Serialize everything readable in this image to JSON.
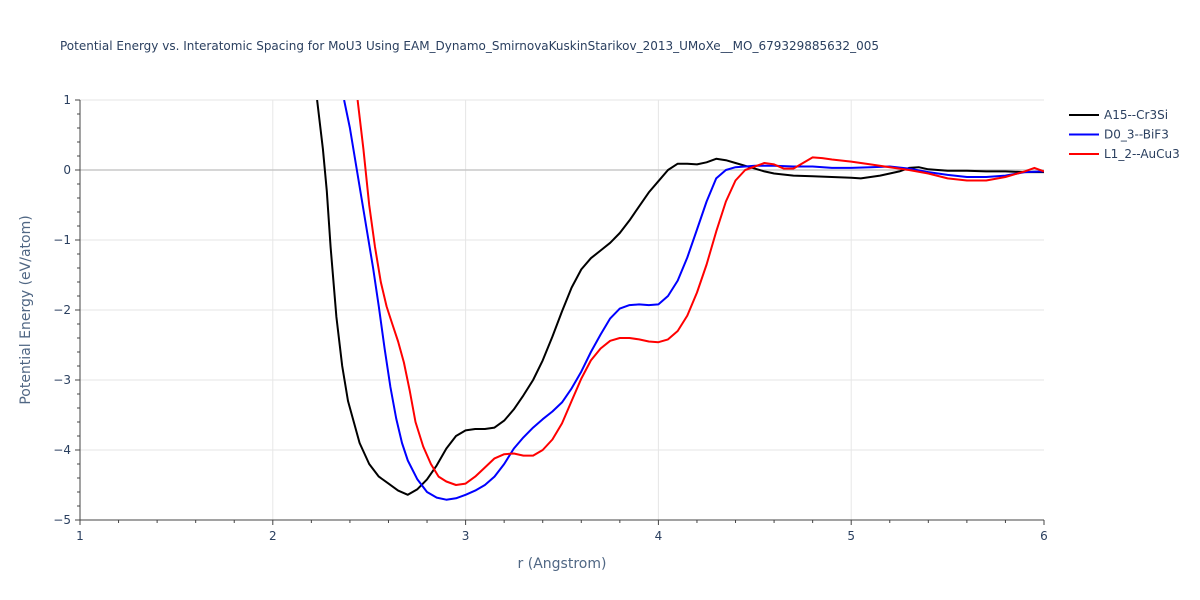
{
  "chart_data": {
    "type": "line",
    "title": "Potential Energy vs. Interatomic Spacing for MoU3 Using EAM_Dynamo_SmirnovaKuskinStarikov_2013_UMoXe__MO_679329885632_005",
    "xlabel": "r (Angstrom)",
    "ylabel": "Potential Energy (eV/atom)",
    "xlim": [
      1,
      6
    ],
    "ylim": [
      -5,
      1
    ],
    "x_ticks": [
      1,
      2,
      3,
      4,
      5,
      6
    ],
    "y_ticks": [
      1,
      0,
      -1,
      -2,
      -3,
      -4,
      -5
    ],
    "x_tick_labels": [
      "1",
      "2",
      "3",
      "4",
      "5",
      "6"
    ],
    "y_tick_labels": [
      "1",
      "0",
      "−1",
      "−2",
      "−3",
      "−4",
      "−5"
    ],
    "grid": true,
    "legend_position": "top-right",
    "series": [
      {
        "name": "A15--Cr3Si",
        "color": "#000000",
        "points": [
          [
            2.23,
            1.0
          ],
          [
            2.26,
            0.3
          ],
          [
            2.28,
            -0.3
          ],
          [
            2.3,
            -1.1
          ],
          [
            2.33,
            -2.1
          ],
          [
            2.36,
            -2.8
          ],
          [
            2.39,
            -3.3
          ],
          [
            2.42,
            -3.6
          ],
          [
            2.45,
            -3.9
          ],
          [
            2.5,
            -4.2
          ],
          [
            2.55,
            -4.38
          ],
          [
            2.6,
            -4.48
          ],
          [
            2.65,
            -4.58
          ],
          [
            2.7,
            -4.64
          ],
          [
            2.75,
            -4.56
          ],
          [
            2.8,
            -4.42
          ],
          [
            2.85,
            -4.22
          ],
          [
            2.9,
            -3.98
          ],
          [
            2.95,
            -3.8
          ],
          [
            3.0,
            -3.72
          ],
          [
            3.05,
            -3.7
          ],
          [
            3.1,
            -3.7
          ],
          [
            3.15,
            -3.68
          ],
          [
            3.2,
            -3.58
          ],
          [
            3.25,
            -3.42
          ],
          [
            3.3,
            -3.22
          ],
          [
            3.35,
            -3.0
          ],
          [
            3.4,
            -2.72
          ],
          [
            3.45,
            -2.38
          ],
          [
            3.5,
            -2.02
          ],
          [
            3.55,
            -1.68
          ],
          [
            3.6,
            -1.42
          ],
          [
            3.65,
            -1.26
          ],
          [
            3.7,
            -1.15
          ],
          [
            3.75,
            -1.04
          ],
          [
            3.8,
            -0.9
          ],
          [
            3.85,
            -0.72
          ],
          [
            3.9,
            -0.52
          ],
          [
            3.95,
            -0.32
          ],
          [
            4.0,
            -0.16
          ],
          [
            4.05,
            0.0
          ],
          [
            4.1,
            0.09
          ],
          [
            4.15,
            0.09
          ],
          [
            4.2,
            0.08
          ],
          [
            4.25,
            0.11
          ],
          [
            4.3,
            0.16
          ],
          [
            4.35,
            0.14
          ],
          [
            4.4,
            0.1
          ],
          [
            4.45,
            0.06
          ],
          [
            4.5,
            0.02
          ],
          [
            4.55,
            -0.02
          ],
          [
            4.6,
            -0.05
          ],
          [
            4.7,
            -0.08
          ],
          [
            4.8,
            -0.09
          ],
          [
            4.9,
            -0.1
          ],
          [
            5.0,
            -0.11
          ],
          [
            5.05,
            -0.12
          ],
          [
            5.1,
            -0.1
          ],
          [
            5.15,
            -0.08
          ],
          [
            5.2,
            -0.05
          ],
          [
            5.25,
            -0.02
          ],
          [
            5.3,
            0.03
          ],
          [
            5.35,
            0.04
          ],
          [
            5.4,
            0.01
          ],
          [
            5.5,
            -0.01
          ],
          [
            5.6,
            -0.01
          ],
          [
            5.7,
            -0.02
          ],
          [
            5.8,
            -0.02
          ],
          [
            5.9,
            -0.03
          ],
          [
            6.0,
            -0.03
          ]
        ]
      },
      {
        "name": "D0_3--BiF3",
        "color": "#0000ff",
        "points": [
          [
            2.37,
            1.0
          ],
          [
            2.4,
            0.6
          ],
          [
            2.43,
            0.1
          ],
          [
            2.46,
            -0.4
          ],
          [
            2.49,
            -0.9
          ],
          [
            2.52,
            -1.4
          ],
          [
            2.55,
            -1.95
          ],
          [
            2.58,
            -2.55
          ],
          [
            2.61,
            -3.1
          ],
          [
            2.64,
            -3.55
          ],
          [
            2.67,
            -3.9
          ],
          [
            2.7,
            -4.15
          ],
          [
            2.75,
            -4.42
          ],
          [
            2.8,
            -4.6
          ],
          [
            2.85,
            -4.68
          ],
          [
            2.9,
            -4.71
          ],
          [
            2.95,
            -4.69
          ],
          [
            3.0,
            -4.64
          ],
          [
            3.05,
            -4.58
          ],
          [
            3.1,
            -4.5
          ],
          [
            3.15,
            -4.38
          ],
          [
            3.2,
            -4.2
          ],
          [
            3.25,
            -3.98
          ],
          [
            3.3,
            -3.82
          ],
          [
            3.35,
            -3.68
          ],
          [
            3.4,
            -3.56
          ],
          [
            3.45,
            -3.45
          ],
          [
            3.5,
            -3.32
          ],
          [
            3.55,
            -3.12
          ],
          [
            3.6,
            -2.88
          ],
          [
            3.65,
            -2.6
          ],
          [
            3.7,
            -2.35
          ],
          [
            3.75,
            -2.12
          ],
          [
            3.8,
            -1.98
          ],
          [
            3.85,
            -1.93
          ],
          [
            3.9,
            -1.92
          ],
          [
            3.95,
            -1.93
          ],
          [
            4.0,
            -1.92
          ],
          [
            4.05,
            -1.8
          ],
          [
            4.1,
            -1.58
          ],
          [
            4.15,
            -1.25
          ],
          [
            4.2,
            -0.85
          ],
          [
            4.25,
            -0.45
          ],
          [
            4.3,
            -0.12
          ],
          [
            4.35,
            0.0
          ],
          [
            4.4,
            0.04
          ],
          [
            4.5,
            0.06
          ],
          [
            4.6,
            0.06
          ],
          [
            4.7,
            0.05
          ],
          [
            4.8,
            0.05
          ],
          [
            4.9,
            0.03
          ],
          [
            5.0,
            0.03
          ],
          [
            5.1,
            0.04
          ],
          [
            5.2,
            0.05
          ],
          [
            5.3,
            0.02
          ],
          [
            5.4,
            -0.03
          ],
          [
            5.5,
            -0.07
          ],
          [
            5.6,
            -0.1
          ],
          [
            5.7,
            -0.1
          ],
          [
            5.8,
            -0.08
          ],
          [
            5.9,
            -0.03
          ],
          [
            6.0,
            -0.02
          ]
        ]
      },
      {
        "name": "L1_2--AuCu3",
        "color": "#ff0000",
        "points": [
          [
            2.44,
            1.0
          ],
          [
            2.47,
            0.3
          ],
          [
            2.5,
            -0.5
          ],
          [
            2.53,
            -1.1
          ],
          [
            2.56,
            -1.6
          ],
          [
            2.59,
            -1.95
          ],
          [
            2.62,
            -2.2
          ],
          [
            2.65,
            -2.45
          ],
          [
            2.68,
            -2.75
          ],
          [
            2.71,
            -3.15
          ],
          [
            2.74,
            -3.6
          ],
          [
            2.78,
            -3.95
          ],
          [
            2.82,
            -4.2
          ],
          [
            2.86,
            -4.38
          ],
          [
            2.9,
            -4.45
          ],
          [
            2.95,
            -4.5
          ],
          [
            3.0,
            -4.48
          ],
          [
            3.05,
            -4.38
          ],
          [
            3.1,
            -4.25
          ],
          [
            3.15,
            -4.12
          ],
          [
            3.2,
            -4.06
          ],
          [
            3.25,
            -4.05
          ],
          [
            3.3,
            -4.08
          ],
          [
            3.35,
            -4.08
          ],
          [
            3.4,
            -4.0
          ],
          [
            3.45,
            -3.85
          ],
          [
            3.5,
            -3.62
          ],
          [
            3.55,
            -3.3
          ],
          [
            3.6,
            -2.98
          ],
          [
            3.65,
            -2.72
          ],
          [
            3.7,
            -2.55
          ],
          [
            3.75,
            -2.44
          ],
          [
            3.8,
            -2.4
          ],
          [
            3.85,
            -2.4
          ],
          [
            3.9,
            -2.42
          ],
          [
            3.95,
            -2.45
          ],
          [
            4.0,
            -2.46
          ],
          [
            4.05,
            -2.42
          ],
          [
            4.1,
            -2.3
          ],
          [
            4.15,
            -2.08
          ],
          [
            4.2,
            -1.75
          ],
          [
            4.25,
            -1.35
          ],
          [
            4.3,
            -0.88
          ],
          [
            4.35,
            -0.45
          ],
          [
            4.4,
            -0.15
          ],
          [
            4.45,
            0.0
          ],
          [
            4.5,
            0.05
          ],
          [
            4.55,
            0.1
          ],
          [
            4.6,
            0.08
          ],
          [
            4.65,
            0.02
          ],
          [
            4.7,
            0.02
          ],
          [
            4.75,
            0.1
          ],
          [
            4.8,
            0.18
          ],
          [
            4.85,
            0.17
          ],
          [
            4.9,
            0.15
          ],
          [
            5.0,
            0.12
          ],
          [
            5.1,
            0.08
          ],
          [
            5.2,
            0.04
          ],
          [
            5.3,
            0.0
          ],
          [
            5.4,
            -0.05
          ],
          [
            5.5,
            -0.12
          ],
          [
            5.6,
            -0.15
          ],
          [
            5.7,
            -0.15
          ],
          [
            5.8,
            -0.1
          ],
          [
            5.9,
            -0.02
          ],
          [
            5.95,
            0.03
          ],
          [
            6.0,
            -0.02
          ]
        ]
      }
    ]
  }
}
